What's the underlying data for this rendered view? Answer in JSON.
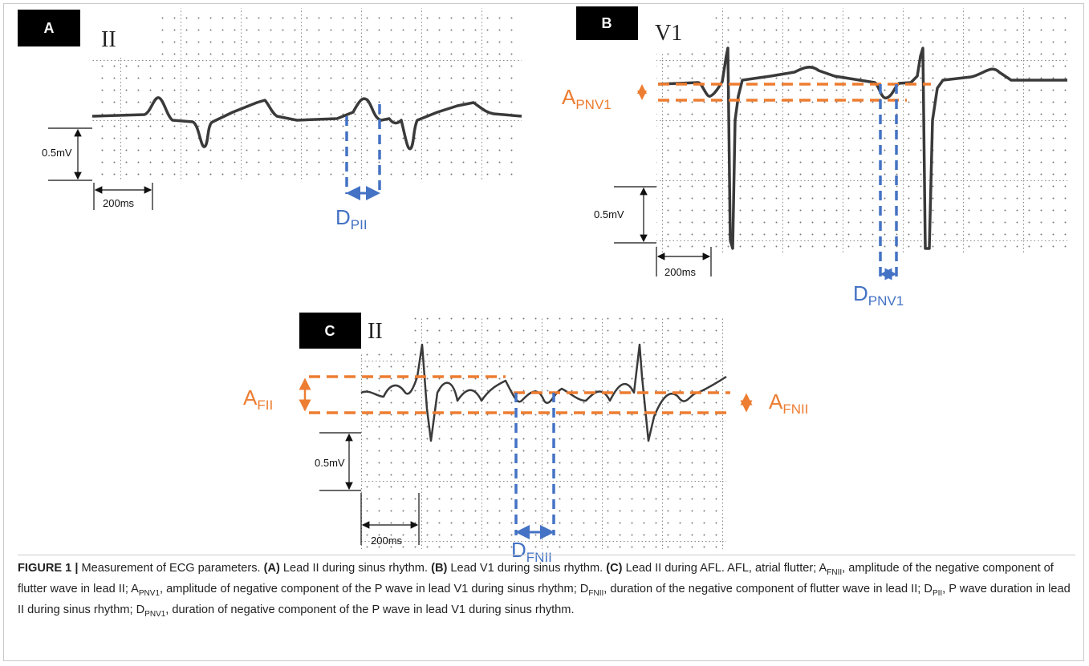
{
  "panels": [
    {
      "label": "A",
      "lead": "II",
      "amplitude_scale": "0.5mV",
      "time_scale": "200ms",
      "annotations": [
        {
          "main": "D",
          "sub": "PII"
        }
      ]
    },
    {
      "label": "B",
      "lead": "V1",
      "amplitude_scale": "0.5mV",
      "time_scale": "200ms",
      "annotations": [
        {
          "main": "A",
          "sub": "PNV1"
        },
        {
          "main": "D",
          "sub": "PNV1"
        }
      ]
    },
    {
      "label": "C",
      "lead": "II",
      "amplitude_scale": "0.5mV",
      "time_scale": "200ms",
      "annotations": [
        {
          "main": "A",
          "sub": "FII"
        },
        {
          "main": "A",
          "sub": "FNII"
        },
        {
          "main": "D",
          "sub": "FNII"
        }
      ]
    }
  ],
  "caption": [
    {
      "text": "FIGURE 1 | ",
      "bold": true
    },
    {
      "text": "Measurement of ECG parameters. "
    },
    {
      "text": "(A)",
      "bold": true
    },
    {
      "text": " Lead II during sinus rhythm. "
    },
    {
      "text": "(B)",
      "bold": true
    },
    {
      "text": " Lead V1 during sinus rhythm. "
    },
    {
      "text": "(C)",
      "bold": true
    },
    {
      "text": " Lead II during AFL. AFL, atrial flutter; A"
    },
    {
      "text": "FNII",
      "sub": true
    },
    {
      "text": ", amplitude of the negative component of flutter wave in lead II; A"
    },
    {
      "text": "PNV1",
      "sub": true
    },
    {
      "text": ", amplitude of negative component of the P wave in lead V1 during sinus rhythm; D"
    },
    {
      "text": "FNII",
      "sub": true
    },
    {
      "text": ", duration of the negative component of flutter wave in lead II; D"
    },
    {
      "text": "PII",
      "sub": true
    },
    {
      "text": ", P wave duration in lead II during sinus rhythm; D"
    },
    {
      "text": "PNV1",
      "sub": true
    },
    {
      "text": ", duration of negative component of the P wave in lead V1 during sinus rhythm."
    }
  ]
}
